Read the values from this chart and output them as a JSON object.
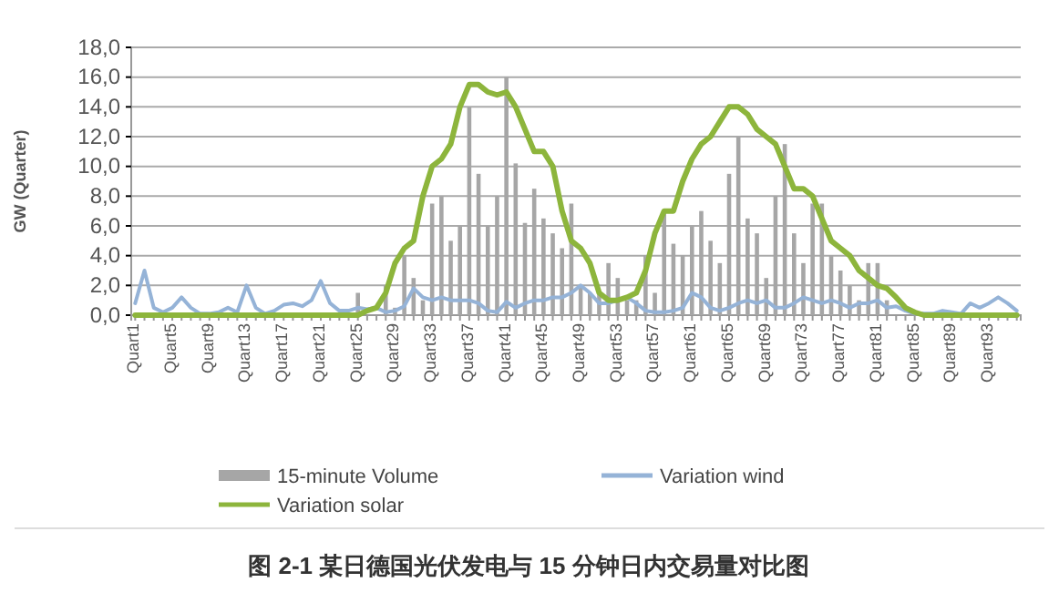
{
  "chart_data": {
    "type": "bar",
    "title": "图 2-1 某日德国光伏发电与 15 分钟日内交易量对比图",
    "ylabel": "GW (Quarter)",
    "categories": [
      "Quart1",
      null,
      null,
      null,
      "Quart5",
      null,
      null,
      null,
      "Quart9",
      null,
      null,
      null,
      "Quart13",
      null,
      null,
      null,
      "Quart17",
      null,
      null,
      null,
      "Quart21",
      null,
      null,
      null,
      "Quart25",
      null,
      null,
      null,
      "Quart29",
      null,
      null,
      null,
      "Quart33",
      null,
      null,
      null,
      "Quart37",
      null,
      null,
      null,
      "Quart41",
      null,
      null,
      null,
      "Quart45",
      null,
      null,
      null,
      "Quart49",
      null,
      null,
      null,
      "Quart53",
      null,
      null,
      null,
      "Quart57",
      null,
      null,
      null,
      "Quart61",
      null,
      null,
      null,
      "Quart65",
      null,
      null,
      null,
      "Quart69",
      null,
      null,
      null,
      "Quart73",
      null,
      null,
      null,
      "Quart77",
      null,
      null,
      null,
      "Quart81",
      null,
      null,
      null,
      "Quart85",
      null,
      null,
      null,
      "Quart89",
      null,
      null,
      null,
      "Quart93",
      null,
      null,
      null
    ],
    "series": [
      {
        "name": "15-minute Volume",
        "color": "#a6a6a6",
        "values": [
          0,
          0,
          0,
          0,
          0,
          0,
          0,
          0,
          0,
          0,
          0,
          0,
          0,
          0,
          0,
          0,
          0,
          0,
          0,
          0,
          0,
          0,
          0,
          0,
          1.5,
          null,
          null,
          2.0,
          0.5,
          4.0,
          2.5,
          1.0,
          7.5,
          8.0,
          5.0,
          6.0,
          14.0,
          9.5,
          6.0,
          8.0,
          16.0,
          10.2,
          6.2,
          8.5,
          6.5,
          5.5,
          4.5,
          7.5,
          2.0,
          1.5,
          1.5,
          3.5,
          2.5,
          1.0,
          1.0,
          4.0,
          1.5,
          7.0,
          4.8,
          4.0,
          6.0,
          7.0,
          5.0,
          3.5,
          9.5,
          12.0,
          6.5,
          5.5,
          2.5,
          8.0,
          11.5,
          5.5,
          3.5,
          7.5,
          7.5,
          4.0,
          3.0,
          2.0,
          1.0,
          3.5,
          3.5,
          1.0,
          null,
          null,
          0,
          0,
          0,
          0,
          0,
          0,
          0,
          0,
          0,
          0,
          0,
          0
        ]
      },
      {
        "name": "Variation wind",
        "type": "line",
        "color": "#95b3d7",
        "values": [
          0.8,
          3.0,
          0.5,
          0.2,
          0.5,
          1.2,
          0.5,
          0.1,
          0.1,
          0.2,
          0.5,
          0.2,
          2.0,
          0.5,
          0.1,
          0.3,
          0.7,
          0.8,
          0.6,
          1.0,
          2.3,
          0.8,
          0.3,
          0.3,
          0.5,
          0.4,
          0.5,
          0.2,
          0.3,
          0.6,
          1.8,
          1.2,
          1.0,
          1.2,
          1.0,
          1.0,
          1.0,
          0.8,
          0.3,
          0.2,
          0.9,
          0.5,
          0.8,
          1.0,
          1.0,
          1.2,
          1.2,
          1.5,
          2.0,
          1.5,
          0.8,
          0.8,
          1.0,
          1.2,
          0.8,
          0.3,
          0.2,
          0.2,
          0.3,
          0.5,
          1.5,
          1.2,
          0.5,
          0.3,
          0.5,
          0.8,
          1.0,
          0.8,
          1.0,
          0.5,
          0.5,
          0.8,
          1.2,
          1.0,
          0.8,
          1.0,
          0.8,
          0.5,
          0.8,
          0.8,
          1.0,
          0.5,
          0.6,
          0.3,
          0.1,
          0.1,
          0.1,
          0.3,
          0.2,
          0.1,
          0.8,
          0.5,
          0.8,
          1.2,
          0.8,
          0.3
        ]
      },
      {
        "name": "Variation solar",
        "type": "line",
        "color": "#8db53c",
        "values": [
          0,
          0,
          0,
          0,
          0,
          0,
          0,
          0,
          0,
          0,
          0,
          0,
          0,
          0,
          0,
          0,
          0,
          0,
          0,
          0,
          0,
          0,
          0,
          0,
          0,
          0.3,
          0.5,
          1.5,
          3.5,
          4.5,
          5.0,
          8.0,
          10.0,
          10.5,
          11.5,
          14.0,
          15.5,
          15.5,
          15.0,
          14.8,
          15.0,
          14.0,
          12.5,
          11.0,
          11.0,
          10.0,
          7.0,
          5.0,
          4.5,
          3.5,
          1.5,
          1.0,
          1.0,
          1.2,
          1.5,
          3.0,
          5.5,
          7.0,
          7.0,
          9.0,
          10.5,
          11.5,
          12.0,
          13.0,
          14.0,
          14.0,
          13.5,
          12.5,
          12.0,
          11.5,
          10.0,
          8.5,
          8.5,
          8.0,
          6.5,
          5.0,
          4.5,
          4.0,
          3.0,
          2.5,
          2.0,
          1.8,
          1.2,
          0.5,
          0.2,
          0,
          0,
          0,
          0,
          0,
          0,
          0,
          0,
          0,
          0,
          0
        ]
      }
    ],
    "ylim": [
      0,
      18
    ],
    "yticks": [
      {
        "value": 0,
        "label": "0,0"
      },
      {
        "value": 2,
        "label": "2,0"
      },
      {
        "value": 4,
        "label": "4,0"
      },
      {
        "value": 6,
        "label": "6,0"
      },
      {
        "value": 8,
        "label": "8,0"
      },
      {
        "value": 10,
        "label": "10,0"
      },
      {
        "value": 12,
        "label": "12,0"
      },
      {
        "value": 14,
        "label": "14,0"
      },
      {
        "value": 16,
        "label": "16,0"
      },
      {
        "value": 18,
        "label": "18,0"
      }
    ],
    "grid": "y",
    "legend": "bottom"
  }
}
